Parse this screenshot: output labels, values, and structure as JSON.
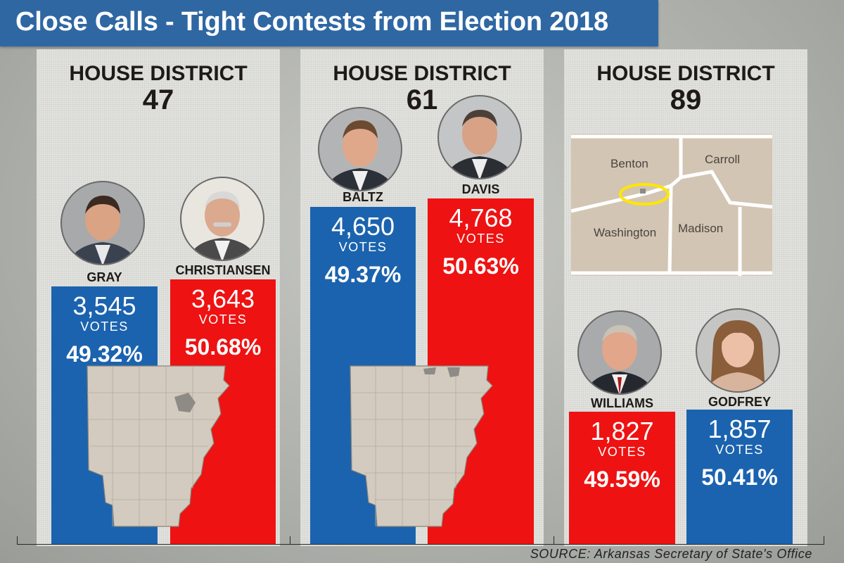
{
  "title": "Close Calls - Tight Contests from Election 2018",
  "source": "SOURCE: Arkansas Secretary of State's Office",
  "colors": {
    "republican_red": "#ee1212",
    "democrat_blue": "#1b63ae",
    "title_blue": "#2f67a3"
  },
  "chart_data": [
    {
      "type": "bar",
      "title": "HOUSE DISTRICT 47",
      "title_line1": "HOUSE DISTRICT",
      "district": "47",
      "categories": [
        "GRAY",
        "CHRISTIANSEN"
      ],
      "values": [
        3545,
        3643
      ],
      "vote_labels": [
        "3,545",
        "3,643"
      ],
      "percents": [
        "49.32%",
        "50.68%"
      ],
      "colors": [
        "blue",
        "red"
      ],
      "unit_label": "VOTES"
    },
    {
      "type": "bar",
      "title": "HOUSE DISTRICT 61",
      "title_line1": "HOUSE DISTRICT",
      "district": "61",
      "categories": [
        "BALTZ",
        "DAVIS"
      ],
      "values": [
        4650,
        4768
      ],
      "vote_labels": [
        "4,650",
        "4,768"
      ],
      "percents": [
        "49.37%",
        "50.63%"
      ],
      "colors": [
        "blue",
        "red"
      ],
      "unit_label": "VOTES"
    },
    {
      "type": "bar",
      "title": "HOUSE DISTRICT 89",
      "title_line1": "HOUSE DISTRICT",
      "district": "89",
      "categories": [
        "WILLIAMS",
        "GODFREY"
      ],
      "values": [
        1827,
        1857
      ],
      "vote_labels": [
        "1,827",
        "1,857"
      ],
      "percents": [
        "49.59%",
        "50.41%"
      ],
      "colors": [
        "red",
        "blue"
      ],
      "unit_label": "VOTES"
    }
  ],
  "inset_map": {
    "counties": [
      "Benton",
      "Carroll",
      "Washington",
      "Madison"
    ]
  }
}
